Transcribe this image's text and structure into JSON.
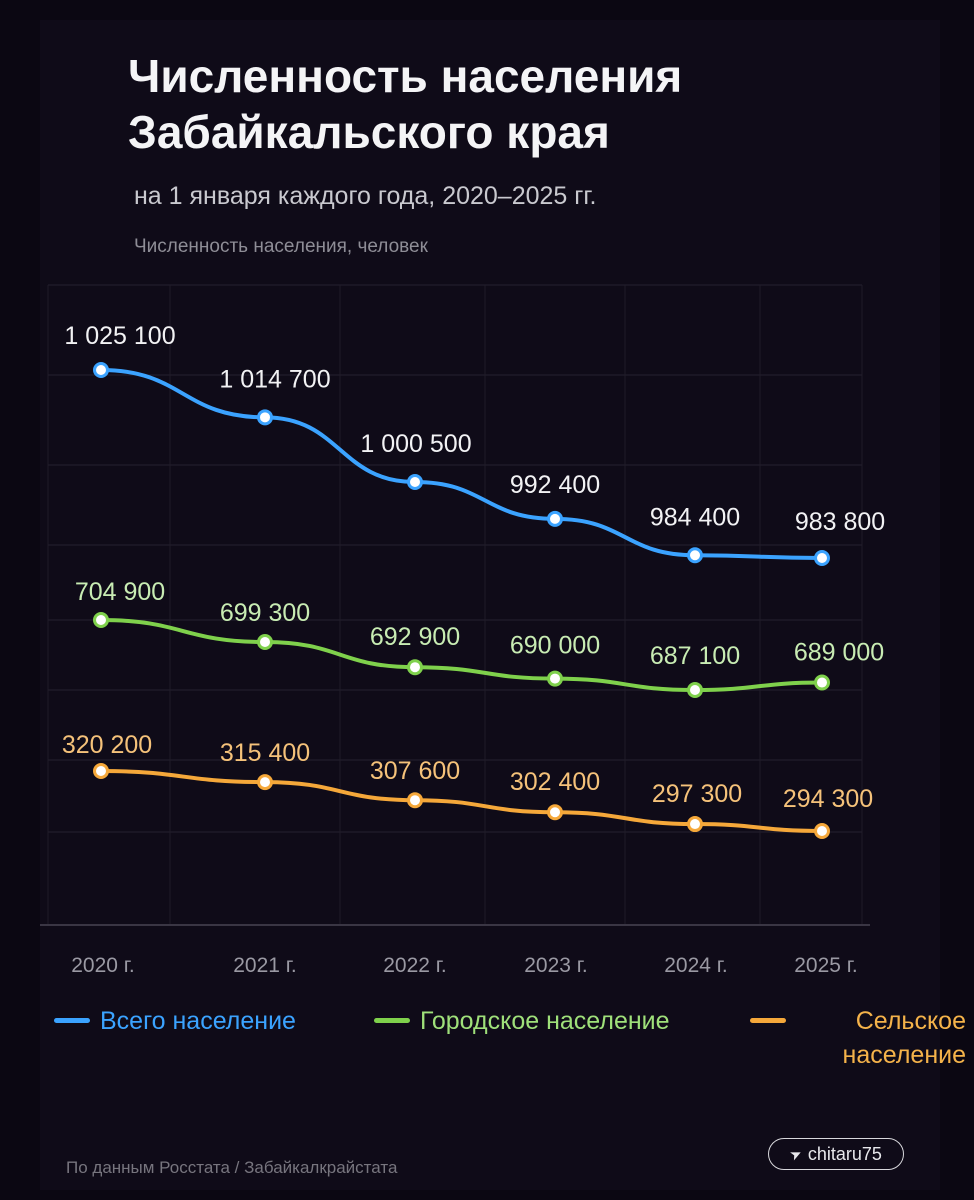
{
  "header": {
    "title": "Численность населения Забайкальского края",
    "subtitle": "на 1 января каждого года, 2020–2025 гг.",
    "axis_label": "Численность населения, человек"
  },
  "legend": {
    "total": "Всего население",
    "urban": "Городское население",
    "rural": "Сельское население"
  },
  "footer": {
    "source": "По данным Росстата / Забайкалкрайстата",
    "badge": "chitaru75"
  },
  "chart_data": {
    "type": "line",
    "title": "Численность населения Забайкальского края",
    "subtitle": "на 1 января каждого года, 2020–2025 гг.",
    "ylabel": "Численность населения, человек",
    "xlabel": "",
    "x": [
      "2020 г.",
      "2021 г.",
      "2022 г.",
      "2023 г.",
      "2024 г.",
      "2025 г."
    ],
    "grid": true,
    "legend_position": "bottom",
    "series": [
      {
        "name": "Всего население",
        "color": "#3ba3ff",
        "label_color": "#f2f2f4",
        "values": [
          1025100,
          1014700,
          1000500,
          992400,
          984400,
          983800
        ],
        "labels": [
          "1 025 100",
          "1 014 700",
          "1 000 500",
          "992 400",
          "984 400",
          "983 800"
        ]
      },
      {
        "name": "Городское население",
        "color": "#7fd14c",
        "label_color": "#c8ecb3",
        "values": [
          704900,
          699300,
          692900,
          690000,
          687100,
          689000
        ],
        "labels": [
          "704 900",
          "699 300",
          "692 900",
          "690 000",
          "687 100",
          "689 000"
        ]
      },
      {
        "name": "Сельское население",
        "color": "#f5a83a",
        "label_color": "#f5c27a",
        "values": [
          320200,
          315400,
          307600,
          302400,
          297300,
          294300
        ],
        "labels": [
          "320 200",
          "315 400",
          "307 600",
          "302 400",
          "297 300",
          "294 300"
        ]
      }
    ]
  }
}
